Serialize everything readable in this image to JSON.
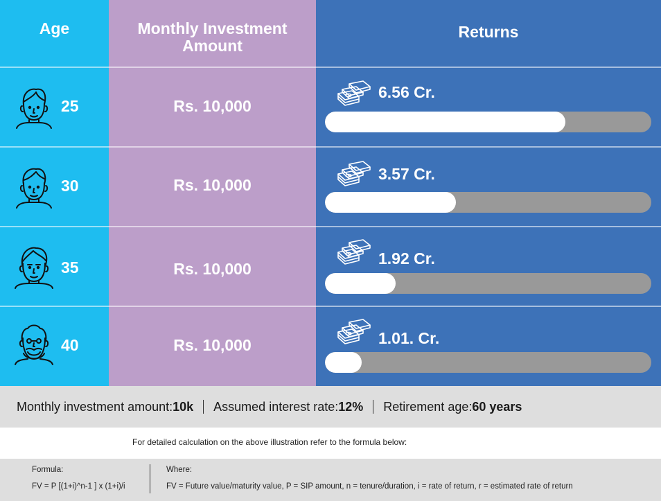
{
  "header": {
    "age": "Age",
    "investment_line1": "Monthly Investment",
    "investment_line2": "Amount",
    "returns": "Returns"
  },
  "rows": [
    {
      "age": "25",
      "investment": "Rs. 10,000",
      "returns": "6.56 Cr."
    },
    {
      "age": "30",
      "investment": "Rs. 10,000",
      "returns": "3.57 Cr."
    },
    {
      "age": "35",
      "investment": "Rs. 10,000",
      "returns": "1.92 Cr."
    },
    {
      "age": "40",
      "investment": "Rs. 10,000",
      "returns": "1.01. Cr."
    }
  ],
  "chart_data": {
    "type": "bar",
    "categories": [
      "25",
      "30",
      "35",
      "40"
    ],
    "values": [
      6.56,
      3.57,
      1.92,
      1.01
    ],
    "title": "",
    "xlabel": "Age",
    "ylabel": "Returns",
    "ylim": [
      0,
      8.9
    ]
  },
  "summary": {
    "investment_label": "Monthly investment amount: ",
    "investment_value": "10k",
    "rate_label": "Assumed interest rate: ",
    "rate_value": "12%",
    "retirement_label": "Retirement age: ",
    "retirement_value": "60 years"
  },
  "note": "For detailed calculation on the above illustration refer to the formula below:",
  "formula": {
    "label": "Formula:",
    "equation": "FV = P [(1+i)^n-1 ] x (1+i)/i",
    "where_label": "Where:",
    "where_text": "FV = Future value/maturity value, P = SIP amount, n = tenure/duration, i = rate of return, r = estimated rate of return"
  },
  "colors": {
    "age_column": "#1ebdf0",
    "investment_column": "#bc9ec9",
    "returns_column": "#3d72b8",
    "bar_fill": "#ffffff",
    "bar_track": "#999999"
  },
  "icons": {
    "face": "person-face-icon",
    "money": "money-stack-icon"
  }
}
